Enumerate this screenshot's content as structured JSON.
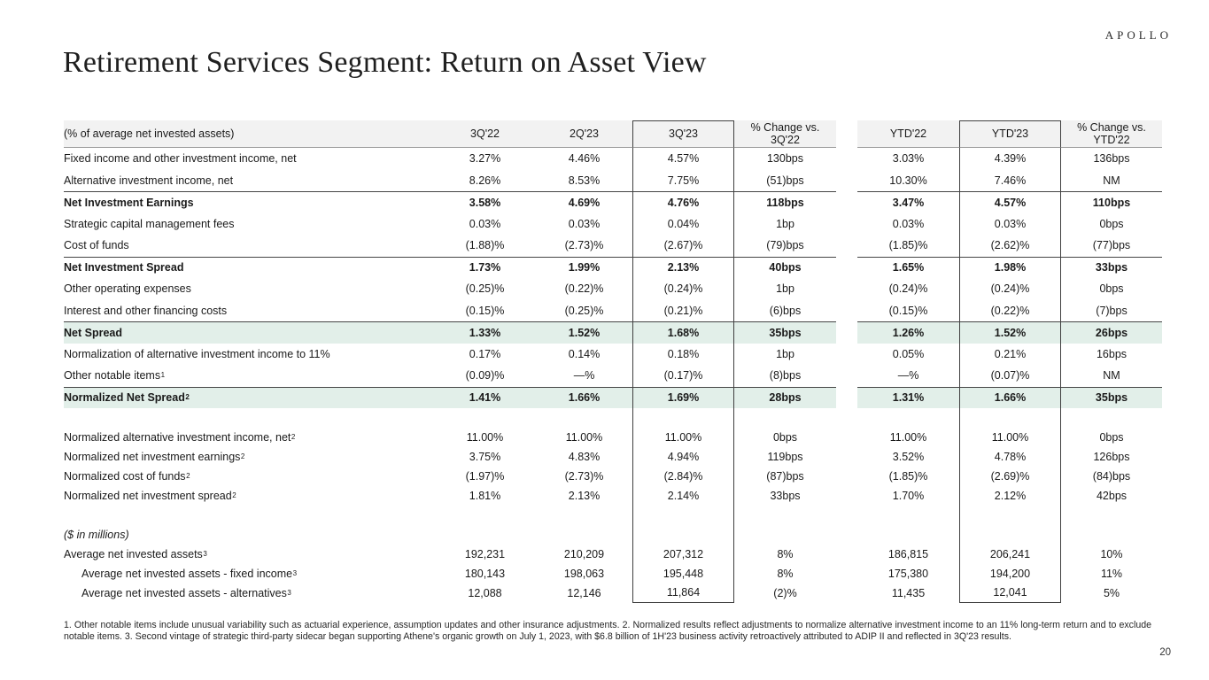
{
  "brand": {
    "logo": "APOLLO"
  },
  "slide": {
    "title": "Retirement Services Segment: Return on Asset View",
    "page_number": "20"
  },
  "colors": {
    "highlight_row_bg": "#e2efe9",
    "header_row_bg": "#f2f2f2",
    "box_border": "#3f3f3f"
  },
  "footnotes": "1. Other notable items include unusual variability such as actuarial experience, assumption updates and other insurance adjustments. 2. Normalized results reflect adjustments to normalize alternative investment income to an 11% long-term return and to exclude notable items. 3. Second vintage of strategic third-party sidecar began supporting Athene's organic growth on July 1, 2023, with $6.8 billion of 1H'23 business activity retroactively attributed to ADIP II and reflected in 3Q'23 results.",
  "table": {
    "headers": [
      "(% of average net invested assets)",
      "3Q'22",
      "2Q'23",
      "3Q'23",
      "% Change vs.\n3Q'22",
      "",
      "YTD'22",
      "YTD'23",
      "% Change vs.\nYTD'22"
    ],
    "rows": [
      {
        "label": "Fixed income and other investment income, net",
        "sup": "",
        "section": "main",
        "values": [
          "3.27%",
          "4.46%",
          "4.57%",
          "130bps",
          "3.03%",
          "4.39%",
          "136bps"
        ]
      },
      {
        "label": "Alternative investment income, net",
        "sup": "",
        "section": "main",
        "values": [
          "8.26%",
          "8.53%",
          "7.75%",
          "(51)bps",
          "10.30%",
          "7.46%",
          "NM"
        ]
      },
      {
        "label": "Net Investment Earnings",
        "sup": "",
        "section": "main",
        "bold": true,
        "top_border": true,
        "values": [
          "3.58%",
          "4.69%",
          "4.76%",
          "118bps",
          "3.47%",
          "4.57%",
          "110bps"
        ]
      },
      {
        "label": "Strategic capital management fees",
        "sup": "",
        "section": "main",
        "values": [
          "0.03%",
          "0.03%",
          "0.04%",
          "1bp",
          "0.03%",
          "0.03%",
          "0bps"
        ]
      },
      {
        "label": "Cost of funds",
        "sup": "",
        "section": "main",
        "values": [
          "(1.88)%",
          "(2.73)%",
          "(2.67)%",
          "(79)bps",
          "(1.85)%",
          "(2.62)%",
          "(77)bps"
        ]
      },
      {
        "label": "Net Investment Spread",
        "sup": "",
        "section": "main",
        "bold": true,
        "top_border": true,
        "values": [
          "1.73%",
          "1.99%",
          "2.13%",
          "40bps",
          "1.65%",
          "1.98%",
          "33bps"
        ]
      },
      {
        "label": "Other operating expenses",
        "sup": "",
        "section": "main",
        "values": [
          "(0.25)%",
          "(0.22)%",
          "(0.24)%",
          "1bp",
          "(0.24)%",
          "(0.24)%",
          "0bps"
        ]
      },
      {
        "label": "Interest and other financing costs",
        "sup": "",
        "section": "main",
        "values": [
          "(0.15)%",
          "(0.25)%",
          "(0.21)%",
          "(6)bps",
          "(0.15)%",
          "(0.22)%",
          "(7)bps"
        ]
      },
      {
        "label": "Net Spread",
        "sup": "",
        "section": "main",
        "bold": true,
        "highlight": true,
        "top_border": true,
        "values": [
          "1.33%",
          "1.52%",
          "1.68%",
          "35bps",
          "1.26%",
          "1.52%",
          "26bps"
        ]
      },
      {
        "label": "Normalization of alternative investment income to 11%",
        "sup": "",
        "section": "main",
        "values": [
          "0.17%",
          "0.14%",
          "0.18%",
          "1bp",
          "0.05%",
          "0.21%",
          "16bps"
        ]
      },
      {
        "label": "Other notable items",
        "sup": "1",
        "section": "main",
        "values": [
          "(0.09)%",
          "—%",
          "(0.17)%",
          "(8)bps",
          "—%",
          "(0.07)%",
          "NM"
        ]
      },
      {
        "label": "Normalized Net Spread",
        "sup": "2",
        "section": "main",
        "bold": true,
        "highlight": true,
        "top_border": true,
        "values": [
          "1.41%",
          "1.66%",
          "1.69%",
          "28bps",
          "1.31%",
          "1.66%",
          "35bps"
        ]
      },
      {
        "spacer": true
      },
      {
        "label": "Normalized alternative investment income, net",
        "sup": "2",
        "section": "sub",
        "values": [
          "11.00%",
          "11.00%",
          "11.00%",
          "0bps",
          "11.00%",
          "11.00%",
          "0bps"
        ]
      },
      {
        "label": "Normalized net investment earnings",
        "sup": "2",
        "section": "sub",
        "values": [
          "3.75%",
          "4.83%",
          "4.94%",
          "119bps",
          "3.52%",
          "4.78%",
          "126bps"
        ]
      },
      {
        "label": "Normalized cost of funds",
        "sup": "2",
        "section": "sub",
        "values": [
          "(1.97)%",
          "(2.73)%",
          "(2.84)%",
          "(87)bps",
          "(1.85)%",
          "(2.69)%",
          "(84)bps"
        ]
      },
      {
        "label": "Normalized net investment spread",
        "sup": "2",
        "section": "sub",
        "values": [
          "1.81%",
          "2.13%",
          "2.14%",
          "33bps",
          "1.70%",
          "2.12%",
          "42bps"
        ]
      },
      {
        "spacer": true
      },
      {
        "label": "($ in millions)",
        "sup": "",
        "section": "sub",
        "italic": true,
        "values": [
          "",
          "",
          "",
          "",
          "",
          "",
          ""
        ]
      },
      {
        "label": "Average net invested assets",
        "sup": "3",
        "section": "sub",
        "values": [
          "192,231",
          "210,209",
          "207,312",
          "8%",
          "186,815",
          "206,241",
          "10%"
        ]
      },
      {
        "label": "Average net invested assets - fixed income",
        "sup": "3",
        "section": "sub",
        "indent": true,
        "values": [
          "180,143",
          "198,063",
          "195,448",
          "8%",
          "175,380",
          "194,200",
          "11%"
        ]
      },
      {
        "label": "Average net invested assets - alternatives",
        "sup": "3",
        "section": "sub",
        "indent": true,
        "values": [
          "12,088",
          "12,146",
          "11,864",
          "(2)%",
          "11,435",
          "12,041",
          "5%"
        ]
      }
    ]
  }
}
